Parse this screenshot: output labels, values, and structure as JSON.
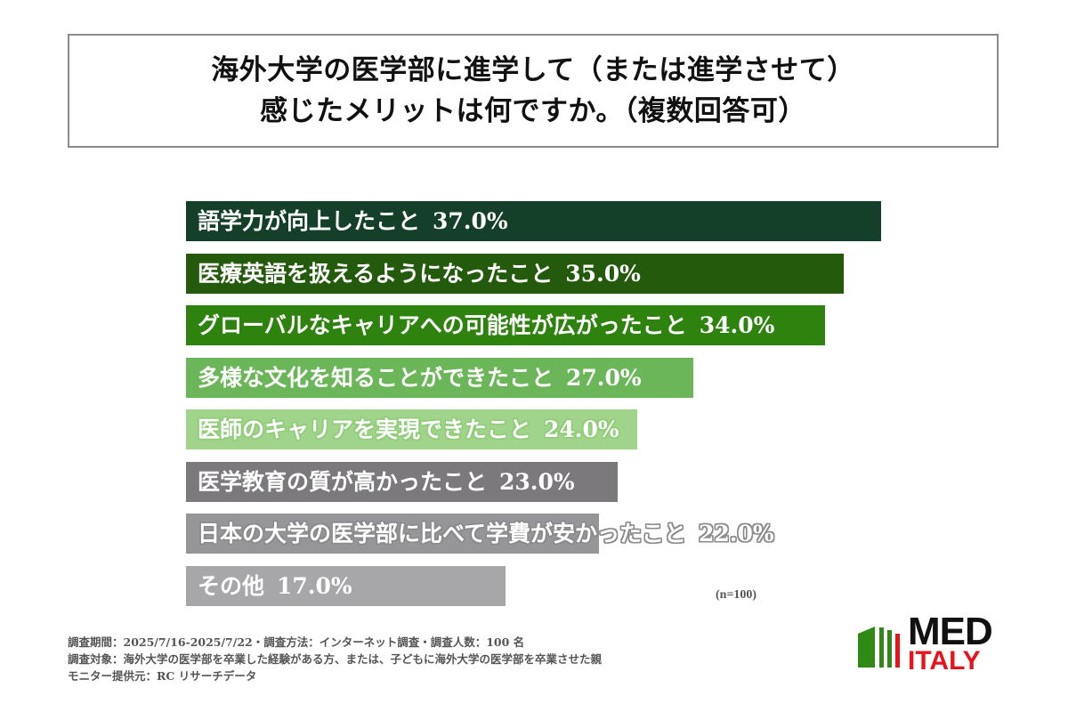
{
  "title": {
    "line1": "海外大学の医学部に進学して（または進学させて）",
    "line2": "感じたメリットは何ですか。（複数回答可）"
  },
  "chart_data": {
    "type": "bar",
    "orientation": "horizontal",
    "title": "海外大学の医学部に進学して（または進学させて）感じたメリットは何ですか。（複数回答可）",
    "categories": [
      "語学力が向上したこと",
      "医療英語を扱えるようになったこと",
      "グローバルなキャリアへの可能性が広がったこと",
      "多様な文化を知ることができたこと",
      "医師のキャリアを実現できたこと",
      "医学教育の質が高かったこと",
      "日本の大学の医学部に比べて学費が安かったこと",
      "その他"
    ],
    "values": [
      37.0,
      35.0,
      34.0,
      27.0,
      24.0,
      23.0,
      22.0,
      17.0
    ],
    "unit": "%",
    "xlabel": "",
    "ylabel": "",
    "grid": false,
    "legend": null,
    "sample_size": "(n=100)"
  },
  "bars": [
    {
      "label": "語学力が向上したこと",
      "pct": "37.0%",
      "value": 37.0,
      "color": "#143f28",
      "text_outline": "none"
    },
    {
      "label": "医療英語を扱えるようになったこと",
      "pct": "35.0%",
      "value": 35.0,
      "color": "#235a0c",
      "text_outline": "none"
    },
    {
      "label": "グローバルなキャリアへの可能性が広がったこと",
      "pct": "34.0%",
      "value": 34.0,
      "color": "#2e820e",
      "text_outline": "#2e820e"
    },
    {
      "label": "多様な文化を知ることができたこと",
      "pct": "27.0%",
      "value": 27.0,
      "color": "#6cb65a",
      "text_outline": "#6cb65a"
    },
    {
      "label": "医師のキャリアを実現できたこと",
      "pct": "24.0%",
      "value": 24.0,
      "color": "#9fd48a",
      "text_outline": "#8fcc78"
    },
    {
      "label": "医学教育の質が高かったこと",
      "pct": "23.0%",
      "value": 23.0,
      "color": "#7b797c",
      "text_outline": "none"
    },
    {
      "label": "日本の大学の医学部に比べて学費が安かったこと",
      "pct": "22.0%",
      "value": 22.0,
      "color": "#969597",
      "text_outline": "#8a898b"
    },
    {
      "label": "その他",
      "pct": "17.0%",
      "value": 17.0,
      "color": "#a7a6a8",
      "text_outline": "none"
    }
  ],
  "sample_size": "(n=100)",
  "footer": {
    "line1": "調査期間：2025/7/16-2025/7/22・調査方法：インターネット調査・調査人数：100 名",
    "line2": "調査対象：海外大学の医学部を卒業した経験がある方、または、子どもに海外大学の医学部を卒業させた親",
    "line3": "モニター提供元：RC リサーチデータ"
  },
  "logo": {
    "top": "MED",
    "bottom": "ITALY",
    "green": "#2e8a14",
    "red": "#e8141c"
  }
}
